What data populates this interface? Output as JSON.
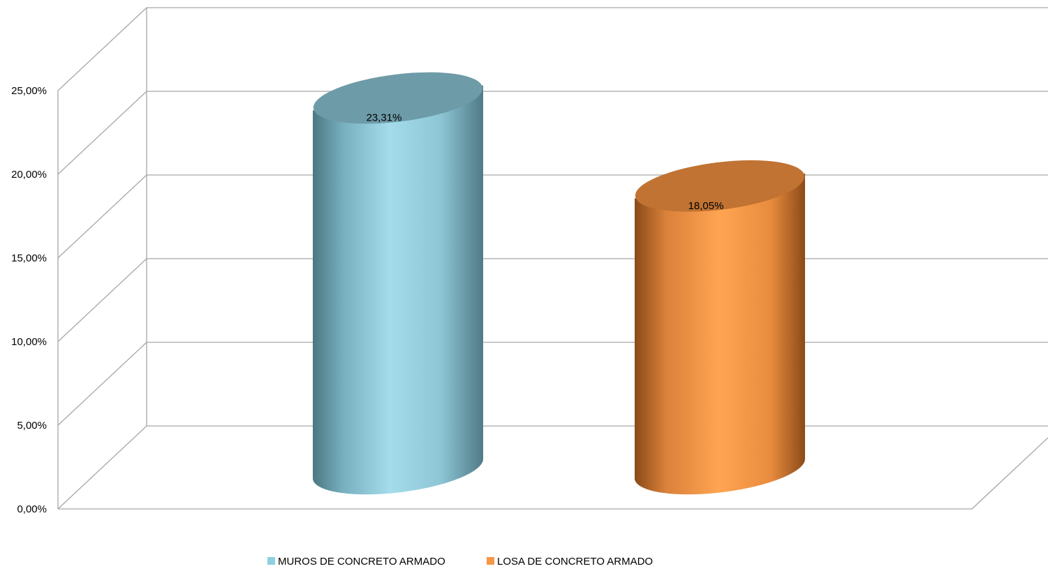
{
  "chart_data": {
    "type": "bar",
    "style": "3d-cylinder",
    "categories": [
      "MUROS DE CONCRETO ARMADO",
      "LOSA DE CONCRETO ARMADO"
    ],
    "series": [
      {
        "name": "MUROS DE CONCRETO ARMADO",
        "value": 23.31,
        "label": "23,31%",
        "color": "#8ecfe0"
      },
      {
        "name": "LOSA DE CONCRETO ARMADO",
        "value": 18.05,
        "label": "18,05%",
        "color": "#f79646"
      }
    ],
    "ylim": [
      0,
      25
    ],
    "yticks": [
      0,
      5,
      10,
      15,
      20,
      25
    ],
    "ytick_labels": [
      "0,00%",
      "5,00%",
      "10,00%",
      "15,00%",
      "20,00%",
      "25,00%"
    ],
    "grid": true,
    "legend": "bottom-center",
    "title": "",
    "xlabel": "",
    "ylabel": ""
  }
}
